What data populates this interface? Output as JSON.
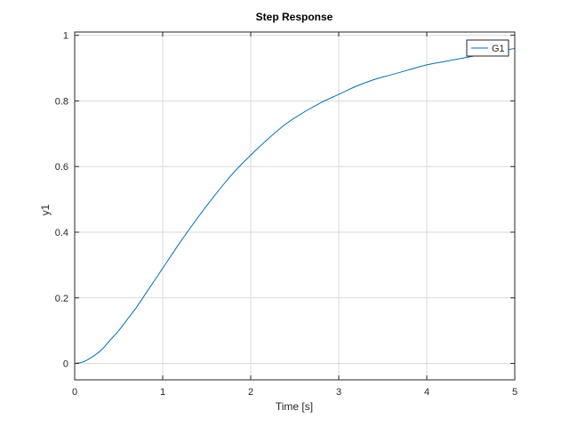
{
  "chart_data": {
    "type": "line",
    "title": "Step Response",
    "xlabel": "Time [s]",
    "ylabel": "y1",
    "xlim": [
      0,
      5
    ],
    "ylim": [
      -0.05,
      1.01
    ],
    "xticks": [
      0,
      1,
      2,
      3,
      4,
      5
    ],
    "xtick_labels": [
      "0",
      "1",
      "2",
      "3",
      "4",
      "5"
    ],
    "yticks": [
      0,
      0.2,
      0.4,
      0.6,
      0.8,
      1
    ],
    "ytick_labels": [
      "0",
      "0.2",
      "0.4",
      "0.6",
      "0.8",
      "1"
    ],
    "grid": true,
    "legend_position": "top-right",
    "series": [
      {
        "name": "G1",
        "color": "#0072bd",
        "x": [
          0,
          0.1,
          0.2,
          0.3,
          0.4,
          0.5,
          0.6,
          0.7,
          0.8,
          0.9,
          1.0,
          1.2,
          1.4,
          1.6,
          1.8,
          2.0,
          2.2,
          2.4,
          2.6,
          2.8,
          3.0,
          3.2,
          3.4,
          3.6,
          3.8,
          4.0,
          4.2,
          4.4,
          4.6,
          4.8,
          5.0
        ],
        "y": [
          0,
          0.005,
          0.02,
          0.04,
          0.07,
          0.1,
          0.135,
          0.17,
          0.21,
          0.25,
          0.29,
          0.37,
          0.445,
          0.515,
          0.58,
          0.635,
          0.685,
          0.73,
          0.765,
          0.795,
          0.82,
          0.845,
          0.865,
          0.88,
          0.895,
          0.91,
          0.92,
          0.93,
          0.94,
          0.95,
          0.96
        ]
      }
    ]
  }
}
